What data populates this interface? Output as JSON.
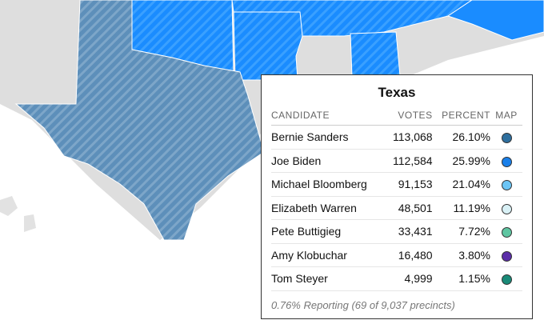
{
  "tooltip": {
    "title": "Texas",
    "columns": [
      "CANDIDATE",
      "VOTES",
      "PERCENT",
      "MAP"
    ],
    "rows": [
      {
        "name": "Bernie Sanders",
        "votes": "113,068",
        "percent": "26.10%",
        "color": "#2e6f9e"
      },
      {
        "name": "Joe Biden",
        "votes": "112,584",
        "percent": "25.99%",
        "color": "#1a80ea"
      },
      {
        "name": "Michael Bloomberg",
        "votes": "91,153",
        "percent": "21.04%",
        "color": "#6cc5f5"
      },
      {
        "name": "Elizabeth Warren",
        "votes": "48,501",
        "percent": "11.19%",
        "color": "#d9f1f6"
      },
      {
        "name": "Pete Buttigieg",
        "votes": "33,431",
        "percent": "7.72%",
        "color": "#5fc6a2"
      },
      {
        "name": "Amy Klobuchar",
        "votes": "16,480",
        "percent": "3.80%",
        "color": "#5b2ea8"
      },
      {
        "name": "Tom Steyer",
        "votes": "4,999",
        "percent": "1.15%",
        "color": "#1a8a78"
      }
    ],
    "footer": "0.76% Reporting (69 of 9,037 precincts)"
  }
}
